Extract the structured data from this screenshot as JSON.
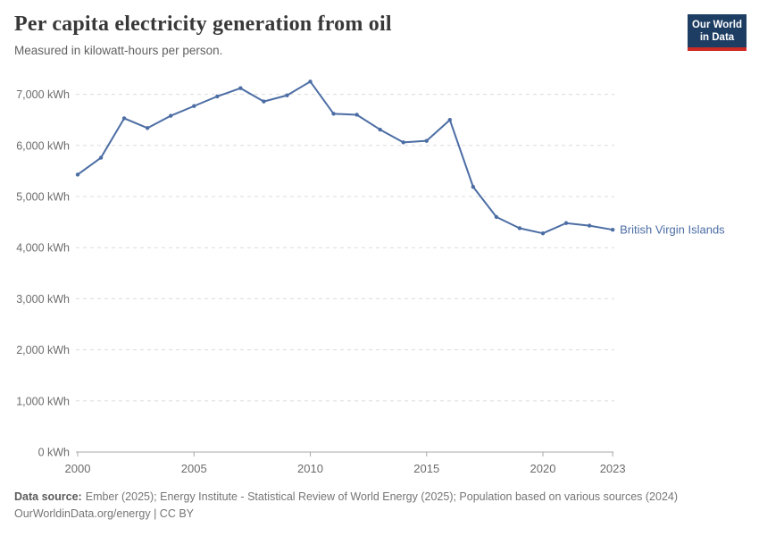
{
  "header": {
    "title": "Per capita electricity generation from oil",
    "subtitle": "Measured in kilowatt-hours per person.",
    "logo": {
      "line1": "Our World",
      "line2": "in Data"
    }
  },
  "chart_data": {
    "type": "line",
    "title": "Per capita electricity generation from oil",
    "ylabel": "",
    "xlabel": "",
    "unit": "kWh",
    "ylim": [
      0,
      7000
    ],
    "grid": "horizontal-dashed",
    "legend_position": "end-of-line-label",
    "x": [
      2000,
      2001,
      2002,
      2003,
      2004,
      2005,
      2006,
      2007,
      2008,
      2009,
      2010,
      2011,
      2012,
      2013,
      2014,
      2015,
      2016,
      2017,
      2018,
      2019,
      2020,
      2021,
      2022,
      2023
    ],
    "series": [
      {
        "name": "British Virgin Islands",
        "values": [
          5430,
          5760,
          6530,
          6340,
          6580,
          6770,
          6960,
          7120,
          6860,
          6980,
          7250,
          6620,
          6600,
          6310,
          6060,
          6090,
          6500,
          5190,
          4600,
          4380,
          4280,
          4480,
          4430,
          4350
        ]
      }
    ],
    "y_ticks": [
      0,
      1000,
      2000,
      3000,
      4000,
      5000,
      6000,
      7000
    ],
    "y_tick_labels": [
      "0 kWh",
      "1,000 kWh",
      "2,000 kWh",
      "3,000 kWh",
      "4,000 kWh",
      "5,000 kWh",
      "6,000 kWh",
      "7,000 kWh"
    ],
    "x_ticks": [
      2000,
      2005,
      2010,
      2015,
      2020,
      2023
    ],
    "x_tick_labels": [
      "2000",
      "2005",
      "2010",
      "2015",
      "2020",
      "2023"
    ]
  },
  "footer": {
    "source_label": "Data source:",
    "source_text": "Ember (2025); Energy Institute - Statistical Review of World Energy (2025); Population based on various sources (2024)",
    "link_line": "OurWorldinData.org/energy | CC BY"
  },
  "colors": {
    "line": "#4c6da4",
    "grid": "#dcdcdc",
    "axis": "#a8a8a8",
    "tick_text": "#6b6b6b",
    "logo_bg": "#1d3d63",
    "logo_accent": "#cc2b23"
  }
}
